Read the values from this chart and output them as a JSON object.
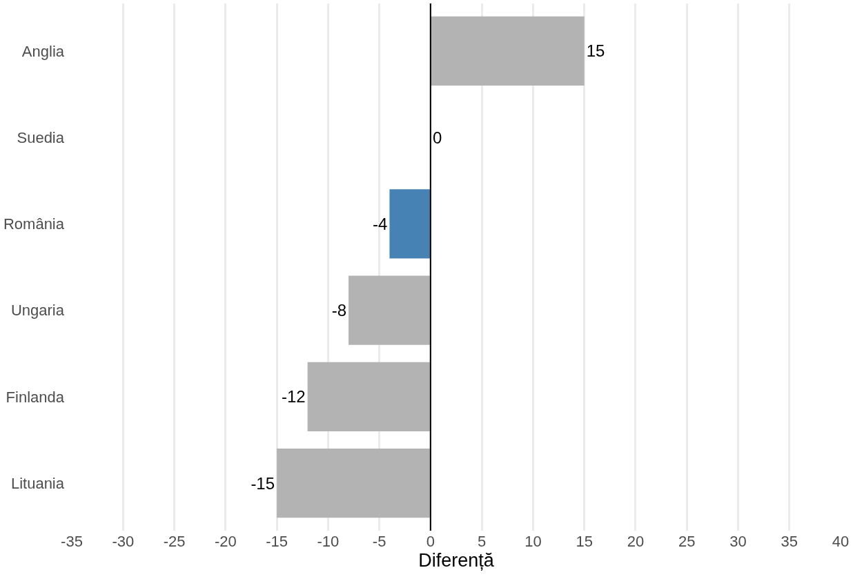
{
  "chart_data": {
    "type": "bar",
    "orientation": "horizontal",
    "xlabel": "Diferență",
    "categories": [
      "Anglia",
      "Suedia",
      "România",
      "Ungaria",
      "Finlanda",
      "Lituania"
    ],
    "values": [
      15,
      0,
      -4,
      -8,
      -12,
      -15
    ],
    "colors": [
      "#b3b3b3",
      "#b3b3b3",
      "#4682b4",
      "#b3b3b3",
      "#b3b3b3",
      "#b3b3b3"
    ],
    "xlim": [
      -35,
      40
    ],
    "xticks": [
      -35,
      -30,
      -25,
      -20,
      -15,
      -10,
      -5,
      0,
      5,
      10,
      15,
      20,
      25,
      30,
      35,
      40
    ],
    "grid": "x",
    "data_labels": true,
    "ref_lines": [
      {
        "axis": "x",
        "value": 0,
        "color": "#000000"
      }
    ]
  }
}
